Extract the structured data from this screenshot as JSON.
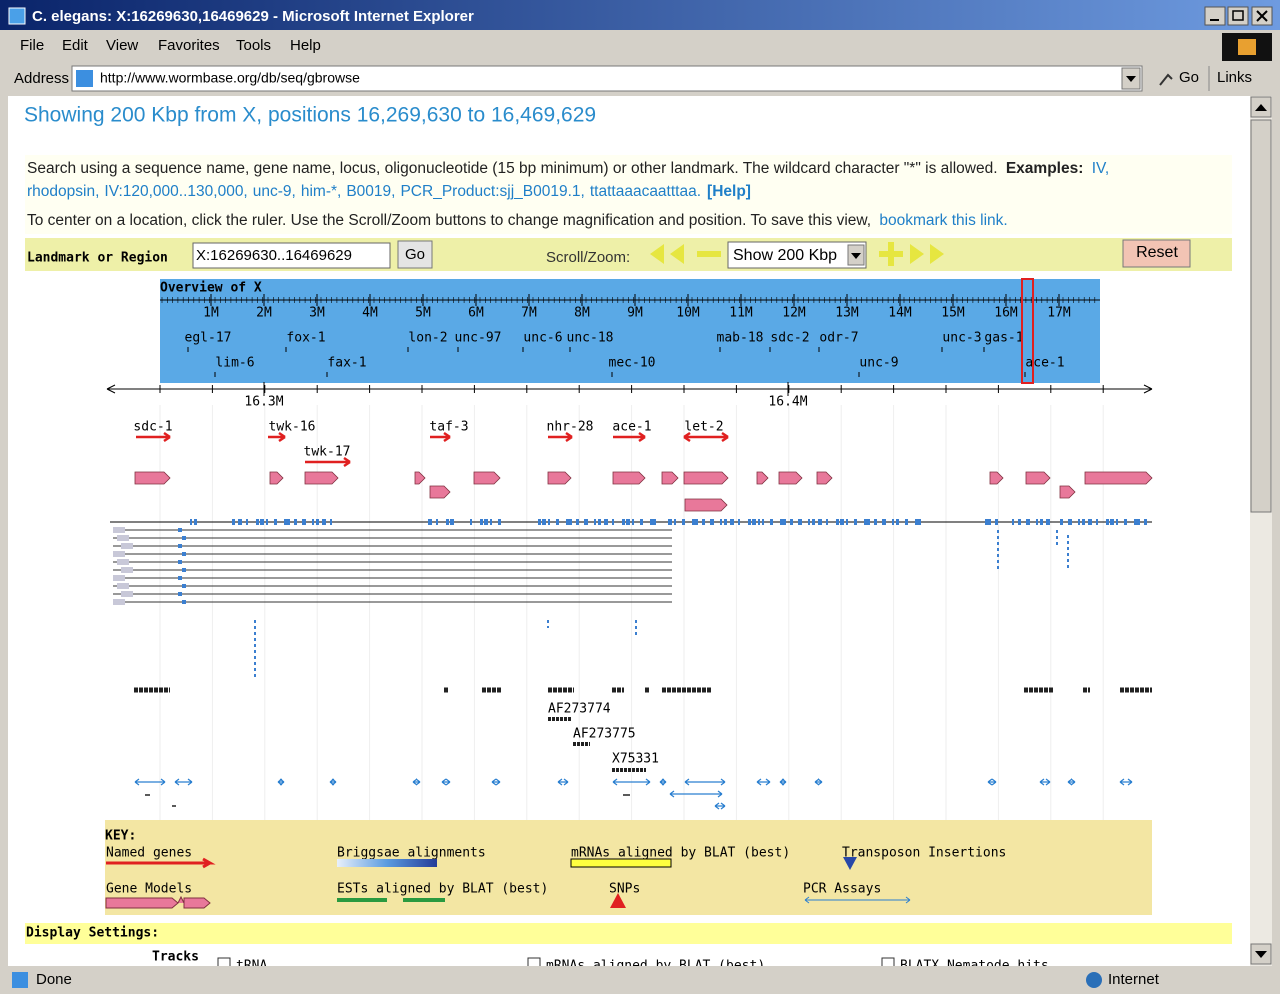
{
  "window": {
    "title": "C. elegans: X:16269630,16469629 - Microsoft Internet Explorer"
  },
  "menu": [
    "File",
    "Edit",
    "View",
    "Favorites",
    "Tools",
    "Help"
  ],
  "address": {
    "label": "Address",
    "url": "http://www.wormbase.org/db/seq/gbrowse",
    "go": "Go",
    "links": "Links"
  },
  "heading": "Showing 200 Kbp from X, positions 16,269,630 to 16,469,629",
  "search": {
    "text": "Search using a sequence name, gene name, locus, oligonucleotide (15 bp minimum) or other landmark. The wildcard character \"*\" is allowed.",
    "examples_label": "Examples:",
    "examples": [
      "IV,",
      "rhodopsin,",
      "IV:120,000..130,000,",
      "unc-9,",
      "him-*,",
      "B0019,",
      "PCR_Product:sjj_B0019.1,",
      "ttattaaacaatttaa."
    ],
    "help": "[Help]"
  },
  "center": {
    "text": "To center on a location, click the ruler. Use the Scroll/Zoom buttons to change magnification and position. To save this view,",
    "link": "bookmark this link."
  },
  "form": {
    "landmark_label": "Landmark or Region",
    "landmark_value": "X:16269630..16469629",
    "go": "Go",
    "scroll_label": "Scroll/Zoom:",
    "zoom": "Show 200 Kbp",
    "reset": "Reset"
  },
  "overview": {
    "title": "Overview of X",
    "ticks": [
      "1M",
      "2M",
      "3M",
      "4M",
      "5M",
      "6M",
      "7M",
      "8M",
      "9M",
      "10M",
      "11M",
      "12M",
      "13M",
      "14M",
      "15M",
      "16M",
      "17M"
    ],
    "genes": [
      "egl-17",
      "lim-6",
      "fox-1",
      "fax-1",
      "lon-2",
      "unc-97",
      "unc-6",
      "unc-18",
      "mec-10",
      "mab-18",
      "sdc-2",
      "odr-7",
      "unc-9",
      "unc-3",
      "gas-1",
      "ace-1"
    ]
  },
  "detail": {
    "ticks": [
      "16.3M",
      "16.4M"
    ],
    "named_genes": [
      "sdc-1",
      "twk-16",
      "twk-17",
      "taf-3",
      "nhr-28",
      "ace-1",
      "let-2"
    ],
    "clones": [
      "AF273774",
      "AF273775",
      "X75331"
    ]
  },
  "key": {
    "title": "KEY:",
    "items": [
      "Named genes",
      "Briggsae alignments",
      "mRNAs aligned by BLAT (best)",
      "Transposon Insertions",
      "Gene Models",
      "ESTs aligned by BLAT (best)",
      "SNPs",
      "PCR Assays"
    ]
  },
  "display": {
    "title": "Display Settings:",
    "tracks_label": "Tracks",
    "tracks": [
      "tRNA",
      "mRNAs aligned by BLAT (best)",
      "BLATX Nematode hits"
    ]
  },
  "status": {
    "text": "Done",
    "zone": "Internet"
  }
}
